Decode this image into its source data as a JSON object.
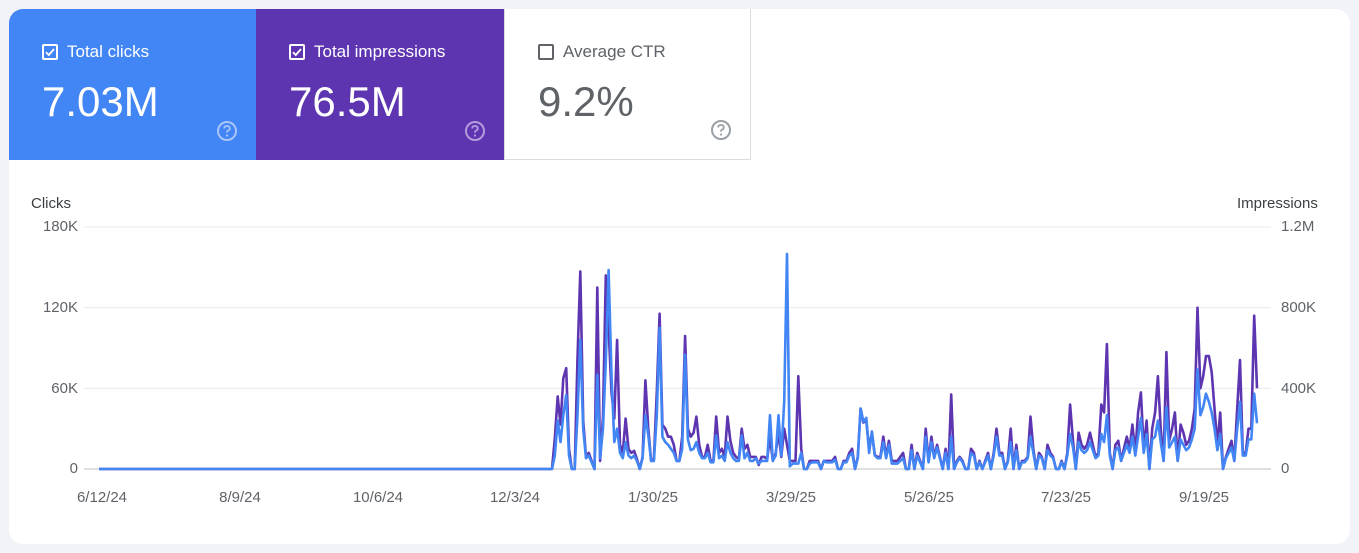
{
  "metrics": {
    "clicks": {
      "label": "Total clicks",
      "value": "7.03M",
      "checked": true,
      "color": "#4285f4"
    },
    "impressions": {
      "label": "Total impressions",
      "value": "76.5M",
      "checked": true,
      "color": "#5e35b1"
    },
    "ctr": {
      "label": "Average CTR",
      "value": "9.2%",
      "checked": false
    }
  },
  "chart_data": {
    "type": "line",
    "left_axis_title": "Clicks",
    "right_axis_title": "Impressions",
    "left_ticks": [
      "180K",
      "120K",
      "60K",
      "0"
    ],
    "right_ticks": [
      "1.2M",
      "800K",
      "400K",
      "0"
    ],
    "x_ticks": [
      "6/12/24",
      "8/9/24",
      "10/6/24",
      "12/3/24",
      "1/30/25",
      "3/29/25",
      "5/26/25",
      "7/23/25",
      "9/19/25"
    ],
    "ylim_clicks": [
      0,
      180000
    ],
    "ylim_impressions": [
      0,
      1200000
    ],
    "grid": true,
    "series": [
      {
        "name": "Impressions",
        "axis": "right",
        "color": "#5e35b1",
        "values": [
          0,
          0,
          0,
          0,
          0,
          0,
          0,
          0,
          0,
          0,
          0,
          0,
          0,
          0,
          0,
          0,
          0,
          0,
          0,
          0,
          0,
          0,
          0,
          0,
          0,
          0,
          0,
          0,
          0,
          0,
          0,
          0,
          0,
          0,
          0,
          0,
          0,
          0,
          0,
          0,
          0,
          0,
          0,
          0,
          0,
          0,
          0,
          0,
          0,
          0,
          0,
          0,
          0,
          0,
          0,
          0,
          0,
          0,
          0,
          0,
          0,
          0,
          0,
          0,
          0,
          0,
          0,
          0,
          0,
          0,
          0,
          0,
          0,
          0,
          0,
          0,
          0,
          0,
          0,
          0,
          0,
          0,
          0,
          0,
          0,
          0,
          0,
          0,
          0,
          0,
          0,
          0,
          0,
          0,
          0,
          0,
          0,
          0,
          0,
          0,
          0,
          0,
          0,
          0,
          0,
          0,
          0,
          0,
          0,
          0,
          0,
          0,
          0,
          0,
          0,
          0,
          0,
          0,
          0,
          0,
          0,
          0,
          0,
          0,
          0,
          0,
          0,
          0,
          0,
          0,
          0,
          0,
          0,
          0,
          0,
          0,
          0,
          0,
          0,
          0,
          0,
          0,
          0,
          0,
          0,
          0,
          0,
          0,
          0,
          0,
          0,
          0,
          0,
          0,
          0,
          0,
          0,
          0,
          0,
          0,
          0,
          150000,
          360000,
          220000,
          450000,
          500000,
          100000,
          0,
          0,
          550000,
          980000,
          240000,
          60000,
          80000,
          40000,
          0,
          900000,
          40000,
          260000,
          960000,
          700000,
          380000,
          250000,
          640000,
          120000,
          80000,
          250000,
          100000,
          80000,
          90000,
          50000,
          0,
          60000,
          440000,
          200000,
          40000,
          50000,
          380000,
          770000,
          220000,
          200000,
          160000,
          160000,
          120000,
          40000,
          40000,
          160000,
          660000,
          200000,
          160000,
          180000,
          260000,
          120000,
          60000,
          60000,
          120000,
          40000,
          40000,
          260000,
          80000,
          100000,
          60000,
          260000,
          140000,
          80000,
          60000,
          50000,
          200000,
          100000,
          120000,
          60000,
          60000,
          60000,
          20000,
          60000,
          60000,
          50000,
          160000,
          40000,
          80000,
          180000,
          60000,
          200000,
          120000,
          40000,
          40000,
          40000,
          460000,
          100000,
          0,
          0,
          40000,
          40000,
          40000,
          40000,
          0,
          40000,
          40000,
          40000,
          40000,
          60000,
          0,
          0,
          40000,
          40000,
          80000,
          100000,
          0,
          60000,
          300000,
          230000,
          240000,
          100000,
          180000,
          70000,
          60000,
          60000,
          160000,
          60000,
          140000,
          40000,
          40000,
          40000,
          60000,
          80000,
          0,
          0,
          120000,
          0,
          80000,
          40000,
          0,
          200000,
          40000,
          160000,
          60000,
          120000,
          60000,
          0,
          100000,
          0,
          370000,
          0,
          40000,
          60000,
          40000,
          0,
          0,
          100000,
          80000,
          0,
          40000,
          0,
          40000,
          80000,
          0,
          80000,
          200000,
          80000,
          80000,
          0,
          40000,
          200000,
          0,
          120000,
          0,
          40000,
          40000,
          60000,
          260000,
          100000,
          0,
          80000,
          60000,
          0,
          120000,
          80000,
          60000,
          0,
          0,
          40000,
          0,
          80000,
          320000,
          140000,
          0,
          180000,
          120000,
          100000,
          120000,
          180000,
          120000,
          60000,
          80000,
          320000,
          280000,
          620000,
          80000,
          0,
          120000,
          140000,
          40000,
          100000,
          160000,
          100000,
          220000,
          80000,
          280000,
          380000,
          100000,
          240000,
          0,
          200000,
          280000,
          460000,
          200000,
          40000,
          580000,
          140000,
          200000,
          280000,
          40000,
          220000,
          180000,
          120000,
          140000,
          200000,
          300000,
          800000,
          400000,
          460000,
          560000,
          560000,
          480000,
          300000,
          120000,
          280000,
          0,
          60000,
          100000,
          140000,
          40000,
          300000,
          540000,
          80000,
          80000,
          200000,
          200000,
          760000,
          400000
        ],
        "note": "sampled daily-series approximation"
      },
      {
        "name": "Clicks",
        "axis": "left",
        "color": "#4285f4",
        "values": [
          0,
          0,
          0,
          0,
          0,
          0,
          0,
          0,
          0,
          0,
          0,
          0,
          0,
          0,
          0,
          0,
          0,
          0,
          0,
          0,
          0,
          0,
          0,
          0,
          0,
          0,
          0,
          0,
          0,
          0,
          0,
          0,
          0,
          0,
          0,
          0,
          0,
          0,
          0,
          0,
          0,
          0,
          0,
          0,
          0,
          0,
          0,
          0,
          0,
          0,
          0,
          0,
          0,
          0,
          0,
          0,
          0,
          0,
          0,
          0,
          0,
          0,
          0,
          0,
          0,
          0,
          0,
          0,
          0,
          0,
          0,
          0,
          0,
          0,
          0,
          0,
          0,
          0,
          0,
          0,
          0,
          0,
          0,
          0,
          0,
          0,
          0,
          0,
          0,
          0,
          0,
          0,
          0,
          0,
          0,
          0,
          0,
          0,
          0,
          0,
          0,
          0,
          0,
          0,
          0,
          0,
          0,
          0,
          0,
          0,
          0,
          0,
          0,
          0,
          0,
          0,
          0,
          0,
          0,
          0,
          0,
          0,
          0,
          0,
          0,
          0,
          0,
          0,
          0,
          0,
          0,
          0,
          0,
          0,
          0,
          0,
          0,
          0,
          0,
          0,
          0,
          0,
          0,
          0,
          0,
          0,
          0,
          0,
          0,
          0,
          0,
          0,
          0,
          0,
          0,
          0,
          0,
          0,
          0,
          0,
          0,
          10000,
          36000,
          20000,
          40000,
          55000,
          10000,
          0,
          0,
          40000,
          96000,
          30000,
          8000,
          10000,
          5000,
          0,
          70000,
          8000,
          30000,
          80000,
          148000,
          70000,
          20000,
          30000,
          12000,
          8000,
          20000,
          10000,
          8000,
          10000,
          6000,
          0,
          8000,
          40000,
          25000,
          6000,
          6000,
          40000,
          105000,
          24000,
          20000,
          18000,
          15000,
          12000,
          6000,
          6000,
          15000,
          85000,
          22000,
          14000,
          15000,
          20000,
          12000,
          8000,
          8000,
          12000,
          5000,
          5000,
          25000,
          8000,
          10000,
          6000,
          20000,
          12000,
          8000,
          6000,
          6000,
          25000,
          8000,
          12000,
          6000,
          6000,
          8000,
          4000,
          6000,
          6000,
          6000,
          40000,
          6000,
          10000,
          40000,
          10000,
          50000,
          160000,
          2000,
          4000,
          4000,
          4000,
          12000,
          0,
          0,
          4000,
          5000,
          5000,
          5000,
          0,
          6000,
          5000,
          5000,
          5000,
          7000,
          0,
          0,
          5000,
          5000,
          10000,
          12000,
          0,
          8000,
          45000,
          35000,
          38000,
          12000,
          28000,
          10000,
          8000,
          8000,
          20000,
          8000,
          18000,
          4000,
          4000,
          4000,
          6000,
          8000,
          0,
          0,
          14000,
          0,
          10000,
          5000,
          0,
          24000,
          5000,
          20000,
          8000,
          16000,
          8000,
          0,
          12000,
          0,
          24000,
          0,
          5000,
          8000,
          5000,
          0,
          0,
          12000,
          10000,
          0,
          5000,
          0,
          5000,
          10000,
          0,
          10000,
          24000,
          10000,
          10000,
          0,
          5000,
          20000,
          0,
          14000,
          0,
          5000,
          5000,
          8000,
          24000,
          12000,
          0,
          10000,
          8000,
          0,
          14000,
          10000,
          8000,
          0,
          0,
          5000,
          0,
          10000,
          26000,
          16000,
          0,
          20000,
          14000,
          12000,
          14000,
          20000,
          14000,
          8000,
          10000,
          26000,
          20000,
          40000,
          10000,
          0,
          14000,
          16000,
          6000,
          12000,
          18000,
          12000,
          24000,
          10000,
          24000,
          38000,
          12000,
          26000,
          0,
          22000,
          24000,
          36000,
          20000,
          6000,
          46000,
          16000,
          20000,
          24000,
          6000,
          22000,
          18000,
          14000,
          16000,
          22000,
          30000,
          74000,
          40000,
          46000,
          56000,
          50000,
          42000,
          30000,
          14000,
          26000,
          0,
          8000,
          12000,
          16000,
          6000,
          30000,
          50000,
          10000,
          10000,
          22000,
          22000,
          56000,
          34000
        ]
      }
    ]
  }
}
